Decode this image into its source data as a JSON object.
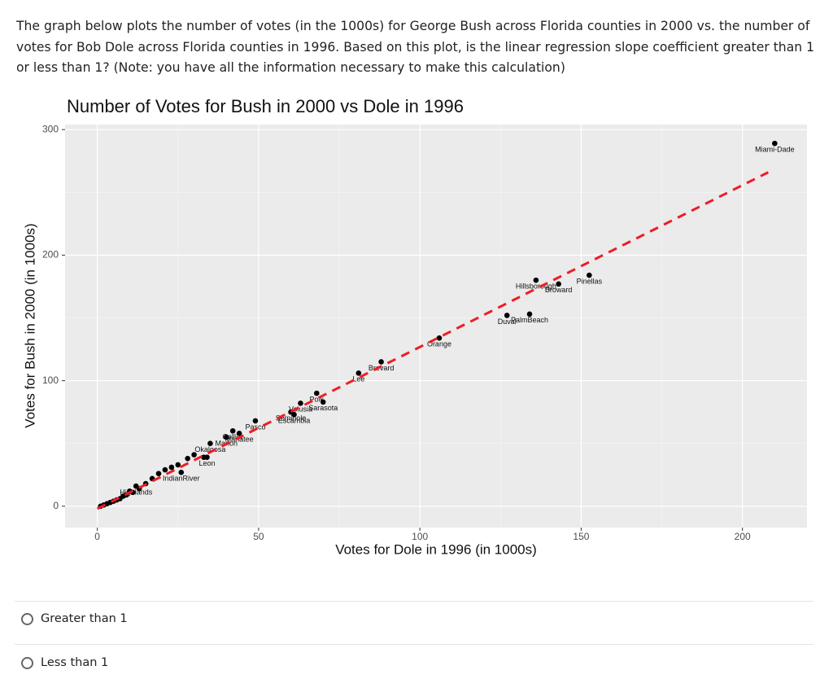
{
  "question": "The graph below plots the number of votes (in the 1000s) for George Bush across Florida counties in 2000 vs. the number of votes for Bob Dole across Florida counties in 1996. Based on this plot, is the linear regression slope coefficient greater than 1 or less than 1? (Note: you have all the information necessary to make this calculation)",
  "chart_data": {
    "type": "scatter",
    "title": "Number of Votes for Bush in 2000 vs Dole in 1996",
    "x_label": "Votes for Dole in 1996 (in 1000s)",
    "y_label": "Votes for Bush in 2000 (in 1000s)",
    "x": [
      210,
      152.5,
      136,
      143,
      127,
      134,
      106,
      88,
      81,
      68,
      70,
      63,
      60,
      61,
      49,
      44,
      42,
      35,
      34,
      26,
      12,
      1,
      2,
      3,
      4,
      5,
      6,
      7,
      8,
      9,
      10,
      11,
      13,
      15,
      17,
      19,
      21,
      23,
      25,
      28,
      30,
      33,
      40
    ],
    "y": [
      289,
      184,
      180,
      177,
      152,
      153,
      134,
      115,
      106,
      90,
      83,
      82,
      75,
      73,
      68,
      58,
      60,
      50,
      39,
      27,
      16,
      0,
      1,
      2,
      3,
      4,
      5,
      6,
      8,
      9,
      12,
      11,
      14,
      18,
      22,
      26,
      29,
      31,
      33,
      38,
      41,
      39,
      55
    ],
    "labels": [
      "Miami-Dade",
      "Pinellas",
      "Hillsborough",
      "Broward",
      "Duval",
      "PalmBeach",
      "Orange",
      "Brevard",
      "Lee",
      "Polk",
      "Sarasota",
      "Volusia",
      "Seminole",
      "Escambia",
      "Pasco",
      "Manatee",
      "Collier",
      "Okaloosa",
      "Leon",
      "IndianRiver",
      "Highlands",
      null,
      null,
      null,
      null,
      null,
      null,
      null,
      null,
      null,
      null,
      null,
      null,
      null,
      null,
      null,
      null,
      null,
      null,
      null,
      null,
      null,
      "Marion"
    ],
    "point_color": "#000000",
    "fit": {
      "x": [
        0,
        208
      ],
      "y": [
        -2,
        266
      ],
      "color": "#ee1c25"
    },
    "xlim": [
      -10,
      220
    ],
    "ylim": [
      -17,
      304
    ],
    "xticks": [
      0,
      50,
      100,
      150,
      200
    ],
    "yticks": [
      0,
      100,
      200,
      300
    ],
    "grid": true
  },
  "options": [
    "Greater than 1",
    "Less than 1"
  ]
}
